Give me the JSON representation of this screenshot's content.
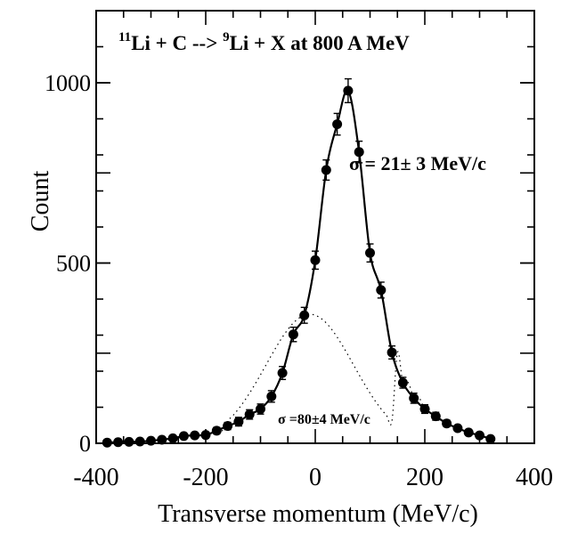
{
  "chart_data": {
    "type": "scatter",
    "title_parts": {
      "pre1": "11",
      "t1": "Li + C --> ",
      "pre2": "9",
      "t2": "Li + X at  800 A MeV"
    },
    "xlabel": "Transverse momentum (MeV/c)",
    "ylabel": "Count",
    "xlim": [
      -400,
      400
    ],
    "ylim": [
      0,
      1200
    ],
    "x_ticks": [
      -400,
      -200,
      0,
      200,
      400
    ],
    "x_tick_labels": [
      "-400",
      "-200",
      "0",
      "200",
      "400"
    ],
    "y_ticks_labeled": [
      0,
      500,
      1000
    ],
    "y_tick_labels": [
      "0",
      "500",
      "1000"
    ],
    "annotations": {
      "narrow": "σ = 21± 3 MeV/c",
      "wide": "σ =80±4 MeV/c"
    },
    "grid": false,
    "series": [
      {
        "points": [
          [
            -380,
            2,
            3
          ],
          [
            -360,
            3,
            3
          ],
          [
            -340,
            4,
            3
          ],
          [
            -320,
            5,
            3
          ],
          [
            -300,
            7,
            4
          ],
          [
            -280,
            10,
            5
          ],
          [
            -260,
            14,
            6
          ],
          [
            -240,
            20,
            7
          ],
          [
            -220,
            22,
            7
          ],
          [
            -200,
            23,
            8
          ],
          [
            -180,
            35,
            9
          ],
          [
            -160,
            48,
            10
          ],
          [
            -140,
            60,
            12
          ],
          [
            -120,
            80,
            13
          ],
          [
            -100,
            95,
            14
          ],
          [
            -80,
            130,
            16
          ],
          [
            -60,
            195,
            18
          ],
          [
            -40,
            302,
            20
          ],
          [
            -20,
            355,
            22
          ],
          [
            0,
            508,
            25
          ],
          [
            20,
            758,
            28
          ],
          [
            40,
            885,
            30
          ],
          [
            60,
            978,
            33
          ],
          [
            80,
            808,
            30
          ],
          [
            100,
            528,
            25
          ],
          [
            120,
            425,
            22
          ],
          [
            140,
            252,
            18
          ],
          [
            160,
            168,
            15
          ],
          [
            180,
            125,
            14
          ],
          [
            200,
            95,
            12
          ],
          [
            220,
            75,
            11
          ],
          [
            240,
            55,
            9
          ],
          [
            260,
            42,
            8
          ],
          [
            280,
            30,
            7
          ],
          [
            300,
            22,
            6
          ],
          [
            320,
            12,
            5
          ]
        ]
      }
    ]
  }
}
